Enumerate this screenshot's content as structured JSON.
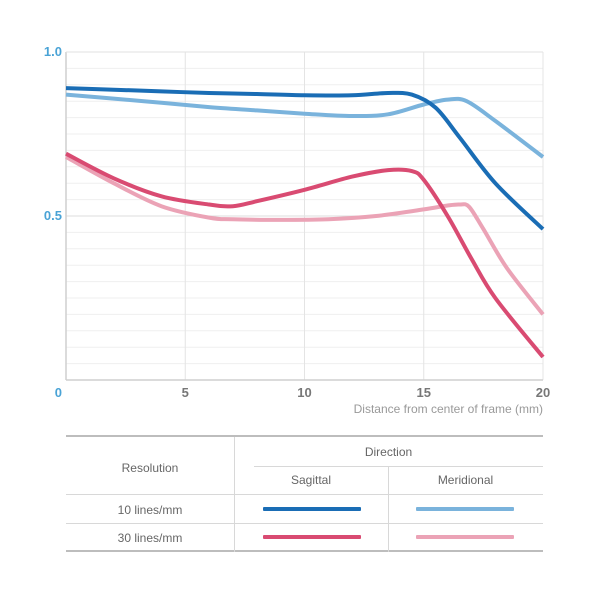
{
  "chart_data": {
    "type": "line",
    "xlabel": "Distance from center of frame (mm)",
    "ylabel": "",
    "xlim": [
      0,
      20
    ],
    "ylim": [
      0,
      1.0
    ],
    "y_tick_labels": [
      "0",
      "0.5",
      "1.0"
    ],
    "x_tick_labels": [
      "5",
      "10",
      "15",
      "20"
    ],
    "grid": true,
    "series": [
      {
        "key": "s10",
        "resolution": "10 lines/mm",
        "direction": "Sagittal",
        "color": "#1a6db5",
        "x": [
          0,
          2,
          4,
          6,
          8,
          10,
          12,
          13.5,
          14.5,
          15.5,
          16.5,
          18,
          20
        ],
        "y": [
          0.89,
          0.885,
          0.88,
          0.875,
          0.872,
          0.868,
          0.868,
          0.875,
          0.87,
          0.83,
          0.74,
          0.6,
          0.46
        ]
      },
      {
        "key": "m10",
        "resolution": "10 lines/mm",
        "direction": "Meridional",
        "color": "#7ab3dc",
        "x": [
          0,
          2,
          4,
          6,
          8,
          10,
          12,
          13.5,
          15,
          16,
          16.8,
          18,
          20
        ],
        "y": [
          0.87,
          0.858,
          0.845,
          0.832,
          0.822,
          0.812,
          0.805,
          0.81,
          0.84,
          0.855,
          0.85,
          0.79,
          0.68
        ]
      },
      {
        "key": "s30",
        "resolution": "30 lines/mm",
        "direction": "Sagittal",
        "color": "#d94b72",
        "x": [
          0,
          2,
          4,
          6,
          7,
          8,
          10,
          12,
          13.5,
          14.5,
          15,
          16,
          17,
          18,
          20
        ],
        "y": [
          0.69,
          0.615,
          0.56,
          0.535,
          0.53,
          0.545,
          0.58,
          0.62,
          0.64,
          0.637,
          0.61,
          0.5,
          0.37,
          0.25,
          0.07
        ]
      },
      {
        "key": "m30",
        "resolution": "30 lines/mm",
        "direction": "Meridional",
        "color": "#eba3b6",
        "x": [
          0,
          2,
          4,
          6,
          7,
          9,
          11,
          13,
          15,
          16,
          16.5,
          16.9,
          17.5,
          18.5,
          20
        ],
        "y": [
          0.68,
          0.6,
          0.53,
          0.495,
          0.49,
          0.488,
          0.49,
          0.5,
          0.52,
          0.532,
          0.535,
          0.528,
          0.46,
          0.34,
          0.2
        ]
      }
    ]
  },
  "legend": {
    "resolution_header": "Resolution",
    "direction_header": "Direction",
    "sagittal": "Sagittal",
    "meridional": "Meridional",
    "row1": "10 lines/mm",
    "row2": "30 lines/mm"
  }
}
